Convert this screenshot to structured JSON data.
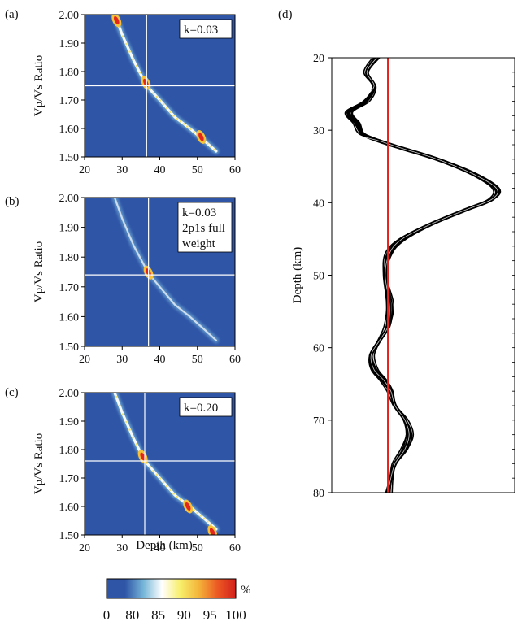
{
  "panel_labels": [
    "(a)",
    "(b)",
    "(c)",
    "(d)"
  ],
  "colors": {
    "background": "#2f55a6",
    "crosshair": "#ffffff",
    "trace": "#000000",
    "zero_line": "#e8211c",
    "colorbar_stops": [
      "#2f55a6",
      "#2f55a6",
      "#76b6d8",
      "#ffffff",
      "#f7ee6a",
      "#f4b43a",
      "#ec5a23",
      "#d3201c"
    ]
  },
  "chart_data": [
    {
      "type": "heatmap",
      "panel": "(a)",
      "annotation": [
        "k=0.03"
      ],
      "xlabel": "",
      "ylabel": "Vp/Vs Ratio",
      "xlim": [
        20,
        60
      ],
      "ylim": [
        1.5,
        2.0
      ],
      "xticks": [
        "20",
        "30",
        "40",
        "50",
        "60"
      ],
      "yticks": [
        "1.50",
        "1.60",
        "1.70",
        "1.80",
        "1.90",
        "2.00"
      ],
      "best_fit": {
        "depth": 36.5,
        "vpvs": 1.75
      },
      "curve": [
        [
          28.0,
          2.0
        ],
        [
          30.0,
          1.93
        ],
        [
          33.0,
          1.84
        ],
        [
          36.5,
          1.75
        ],
        [
          40.0,
          1.7
        ],
        [
          44.0,
          1.64
        ],
        [
          48.0,
          1.6
        ],
        [
          52.0,
          1.555
        ],
        [
          55.0,
          1.52
        ]
      ],
      "peaks": [
        [
          28.5,
          1.98
        ],
        [
          36.3,
          1.76
        ],
        [
          51.0,
          1.57
        ]
      ]
    },
    {
      "type": "heatmap",
      "panel": "(b)",
      "annotation": [
        "k=0.03",
        "2p1s full",
        "weight"
      ],
      "xlabel": "",
      "ylabel": "Vp/Vs Ratio",
      "xlim": [
        20,
        60
      ],
      "ylim": [
        1.5,
        2.0
      ],
      "xticks": [
        "20",
        "30",
        "40",
        "50",
        "60"
      ],
      "yticks": [
        "1.50",
        "1.60",
        "1.70",
        "1.80",
        "1.90",
        "2.00"
      ],
      "best_fit": {
        "depth": 37.0,
        "vpvs": 1.74
      },
      "curve": [
        [
          28.0,
          2.0
        ],
        [
          30.0,
          1.93
        ],
        [
          33.0,
          1.84
        ],
        [
          37.0,
          1.745
        ],
        [
          40.0,
          1.7
        ],
        [
          44.0,
          1.64
        ],
        [
          48.0,
          1.6
        ],
        [
          52.0,
          1.555
        ],
        [
          55.0,
          1.52
        ]
      ],
      "peaks": [
        [
          37.0,
          1.748
        ]
      ]
    },
    {
      "type": "heatmap",
      "panel": "(c)",
      "annotation": [
        "k=0.20"
      ],
      "xlabel": "Depth (km)",
      "ylabel": "Vp/Vs Ratio",
      "xlim": [
        20,
        60
      ],
      "ylim": [
        1.5,
        2.0
      ],
      "xticks": [
        "20",
        "30",
        "40",
        "50",
        "60"
      ],
      "yticks": [
        "1.50",
        "1.60",
        "1.70",
        "1.80",
        "1.90",
        "2.00"
      ],
      "best_fit": {
        "depth": 36.0,
        "vpvs": 1.76
      },
      "curve": [
        [
          28.0,
          2.0
        ],
        [
          30.0,
          1.93
        ],
        [
          33.0,
          1.84
        ],
        [
          36.0,
          1.76
        ],
        [
          40.0,
          1.7
        ],
        [
          44.0,
          1.64
        ],
        [
          48.0,
          1.6
        ],
        [
          52.0,
          1.555
        ],
        [
          55.0,
          1.52
        ]
      ],
      "peaks": [
        [
          35.5,
          1.775
        ],
        [
          47.5,
          1.6
        ],
        [
          54.0,
          1.51
        ]
      ]
    },
    {
      "type": "line",
      "panel": "(d)",
      "ylabel": "Depth (km)",
      "ylim": [
        20,
        80
      ],
      "yticks": [
        "20",
        "30",
        "40",
        "50",
        "60",
        "70",
        "80"
      ],
      "xlim": [
        -0.4,
        0.9
      ],
      "zero_line": 0,
      "trace": [
        [
          20,
          -0.08
        ],
        [
          22,
          -0.15
        ],
        [
          24,
          -0.1
        ],
        [
          26,
          -0.16
        ],
        [
          27.5,
          -0.28
        ],
        [
          29,
          -0.22
        ],
        [
          30.5,
          -0.18
        ],
        [
          31.5,
          -0.06
        ],
        [
          32.5,
          0.1
        ],
        [
          34,
          0.35
        ],
        [
          36,
          0.6
        ],
        [
          38,
          0.77
        ],
        [
          39.5,
          0.74
        ],
        [
          41,
          0.55
        ],
        [
          43,
          0.3
        ],
        [
          45,
          0.1
        ],
        [
          47,
          0.01
        ],
        [
          50,
          -0.02
        ],
        [
          54,
          0.01
        ],
        [
          57,
          0.0
        ],
        [
          59,
          -0.06
        ],
        [
          61,
          -0.12
        ],
        [
          63,
          -0.1
        ],
        [
          64.5,
          -0.03
        ],
        [
          66,
          0.02
        ],
        [
          68,
          0.05
        ],
        [
          70,
          0.12
        ],
        [
          72,
          0.15
        ],
        [
          74,
          0.12
        ],
        [
          76,
          0.05
        ],
        [
          78,
          0.02
        ],
        [
          80,
          0.0
        ]
      ],
      "band_halfwidth": 0.03
    }
  ],
  "colorbar": {
    "unit": "%",
    "ticks": [
      "0",
      "80",
      "85",
      "90",
      "95",
      "100"
    ]
  }
}
